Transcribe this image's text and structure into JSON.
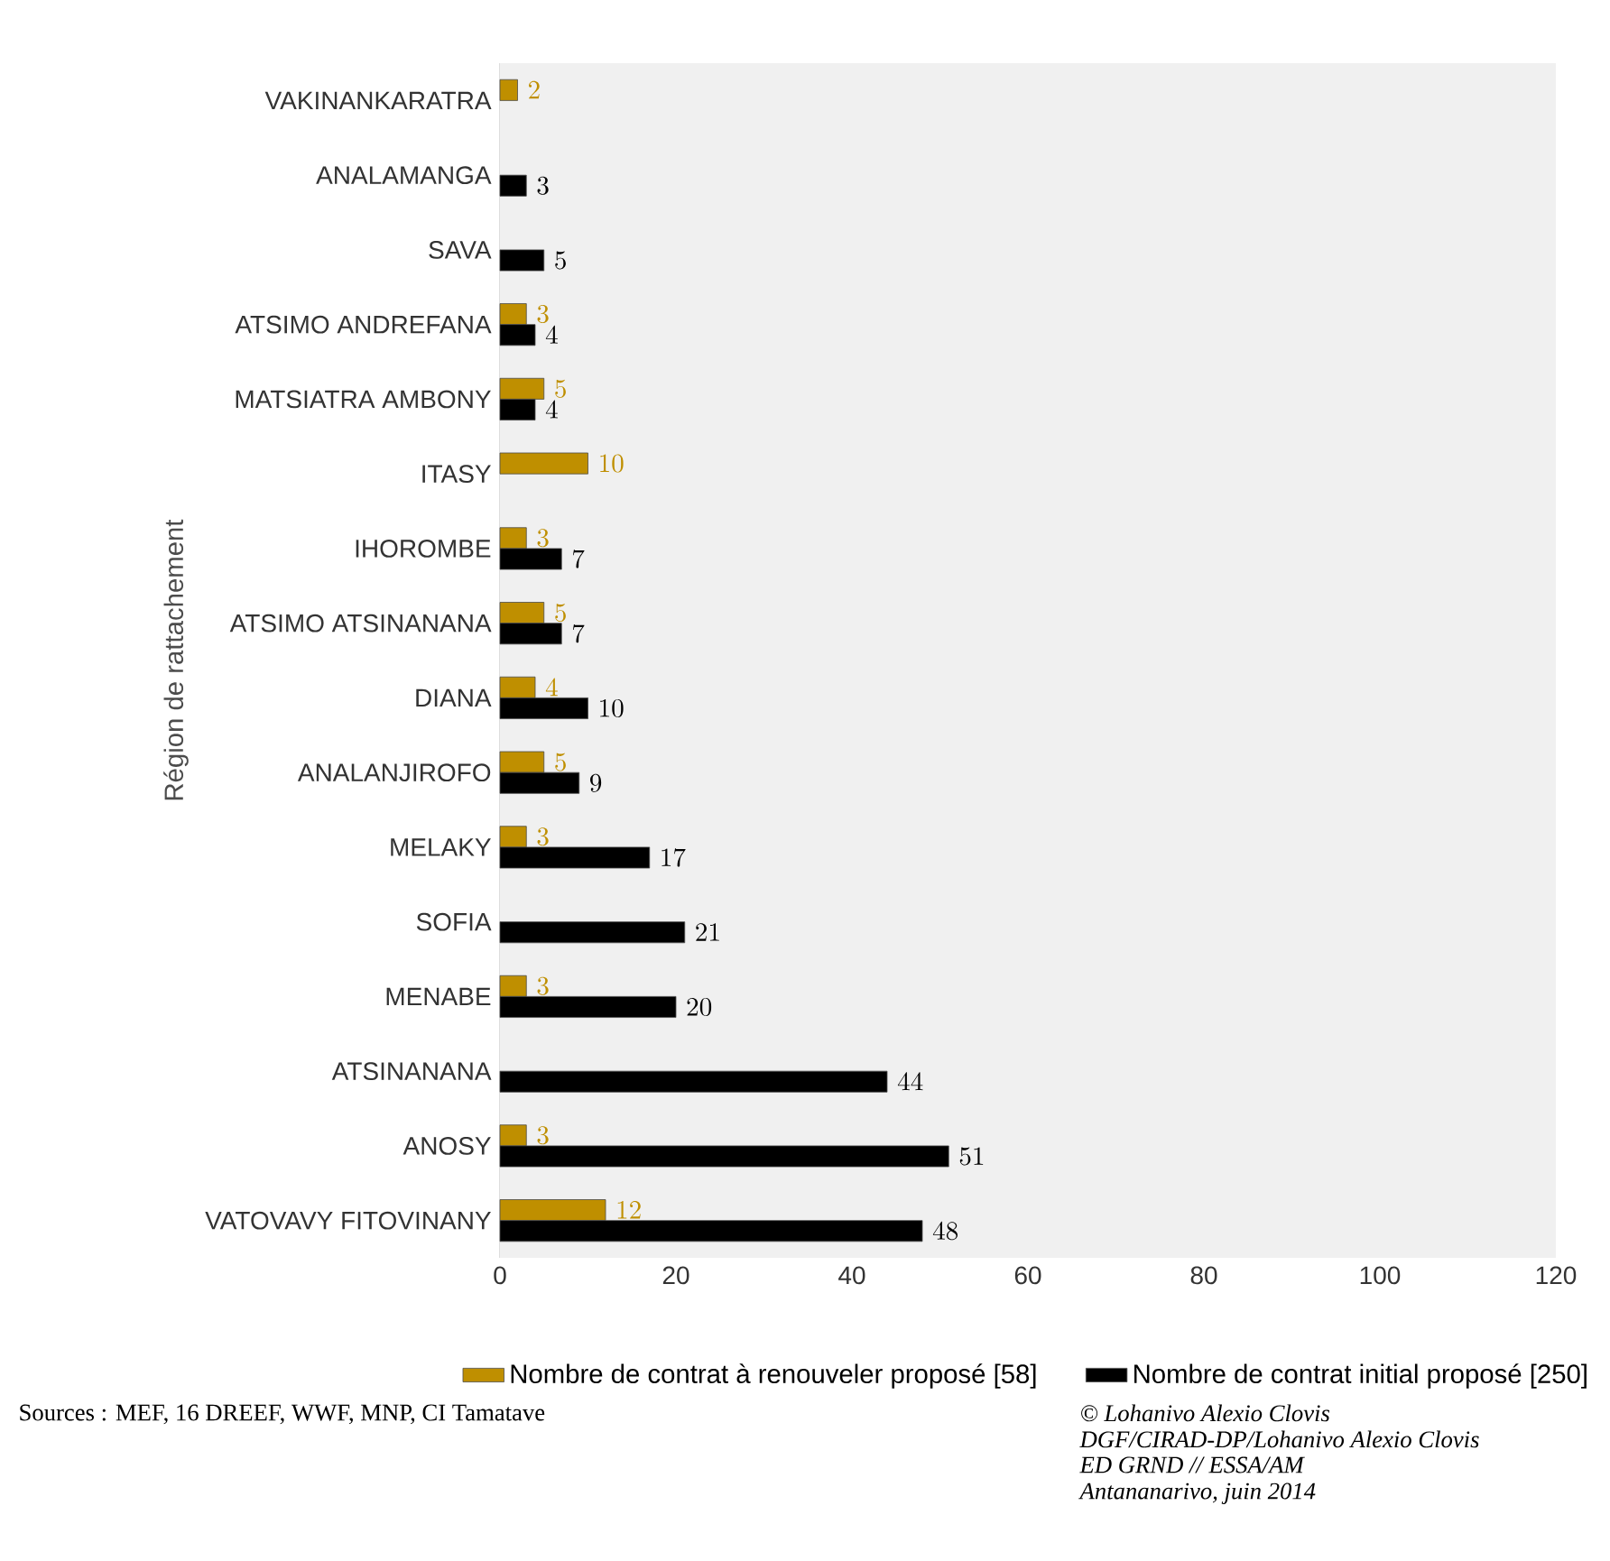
{
  "chart_data": {
    "type": "bar",
    "orientation": "horizontal",
    "ylabel": "Région de rattachement",
    "categories": [
      "VAKINANKARATRA",
      "ANALAMANGA",
      "SAVA",
      "ATSIMO ANDREFANA",
      "MATSIATRA AMBONY",
      "ITASY",
      "IHOROMBE",
      "ATSIMO ATSINANANA",
      "DIANA",
      "ANALANJIROFO",
      "MELAKY",
      "SOFIA",
      "MENABE",
      "ATSINANANA",
      "ANOSY",
      "VATOVAVY FITOVINANY"
    ],
    "series": [
      {
        "name": "Nombre de contrat à renouveler proposé [58]",
        "color": "#bf8f00",
        "values": [
          2,
          null,
          null,
          3,
          5,
          10,
          3,
          5,
          4,
          5,
          3,
          null,
          3,
          null,
          3,
          12
        ]
      },
      {
        "name": "Nombre de contrat initial proposé [250]",
        "color": "#000000",
        "values": [
          null,
          3,
          5,
          4,
          4,
          null,
          7,
          7,
          10,
          9,
          17,
          21,
          20,
          44,
          51,
          48
        ]
      }
    ],
    "xlim": [
      0,
      120
    ],
    "xticks": [
      0,
      20,
      40,
      60,
      80,
      100,
      120
    ],
    "data_labels": true,
    "legend": "bottom",
    "grid": false,
    "annotations": [
      "Sources : MEF, 16  DREEF, WWF, MNP, CI Tamatave",
      "© Lohanivo Alexio Clovis",
      "DGF/CIRAD-DP/Lohanivo Alexio Clovis",
      "ED GRND // ESSA/AM",
      "Antananarivo, juin 2014"
    ]
  }
}
